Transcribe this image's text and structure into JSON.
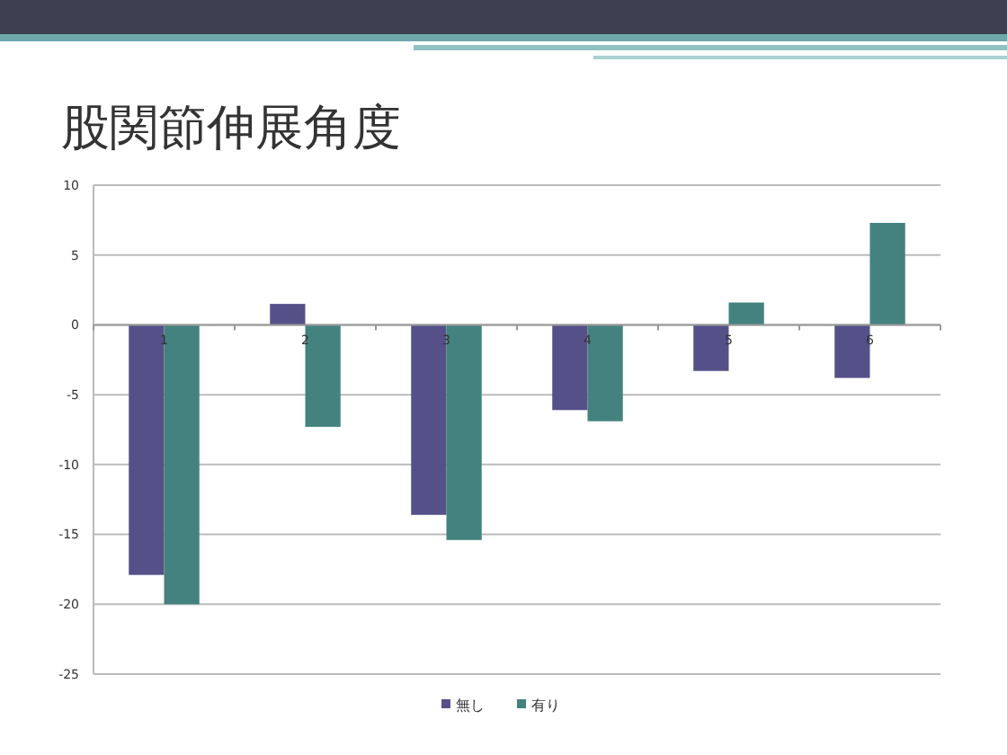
{
  "chart_data": {
    "type": "bar",
    "title": "股関節伸展角度",
    "categories": [
      "1",
      "2",
      "3",
      "4",
      "5",
      "6"
    ],
    "series": [
      {
        "name": "無し",
        "color": "#565089",
        "values": [
          -17.9,
          1.5,
          -13.6,
          -6.1,
          -3.3,
          -3.8
        ]
      },
      {
        "name": "有り",
        "color": "#43827f",
        "values": [
          -20,
          -7.3,
          -15.4,
          -6.9,
          1.6,
          7.3
        ]
      }
    ],
    "ylim": [
      -25,
      10
    ],
    "yticks": [
      -25,
      -20,
      -15,
      -10,
      -5,
      0,
      5,
      10
    ],
    "grid": "y",
    "legend": "bottom"
  }
}
